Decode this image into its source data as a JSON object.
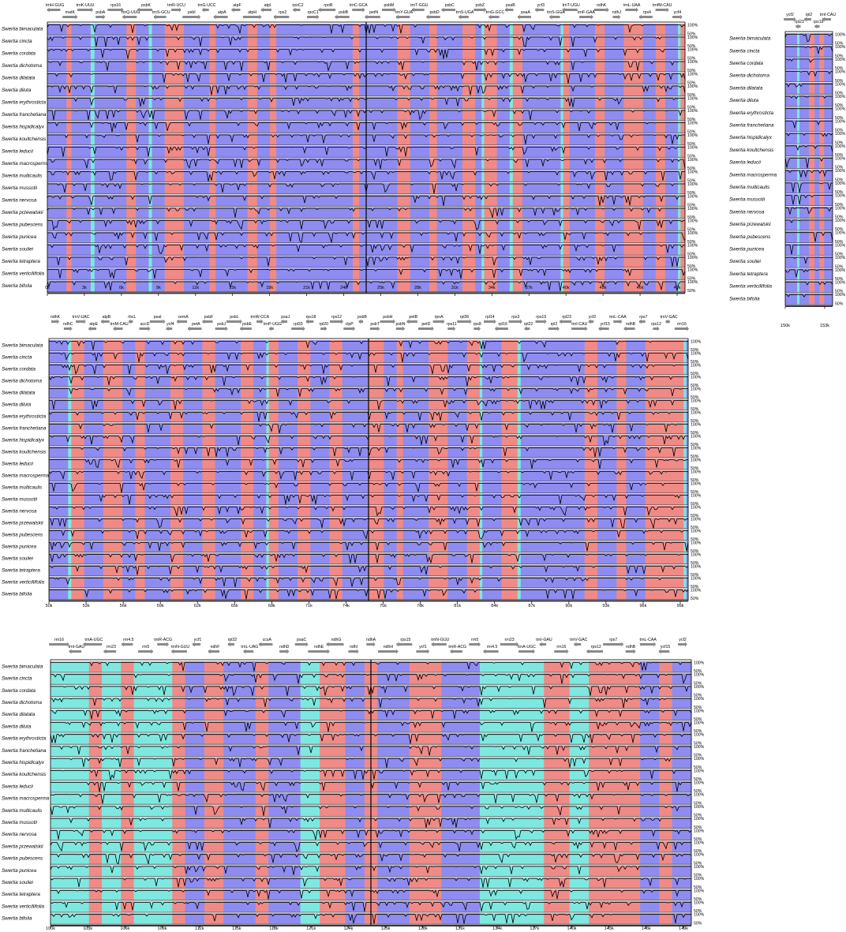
{
  "chart_data": [
    {
      "type": "area",
      "panel": "top-left",
      "x_ticks": [
        "0k",
        "3k",
        "6k",
        "9k",
        "12k",
        "15k",
        "18k",
        "21k",
        "24k",
        "25k",
        "28k",
        "31k",
        "34k",
        "37k",
        "40k",
        "43k",
        "46k",
        "49k"
      ],
      "genes": [
        "trnH-GUG",
        "matK",
        "trnK-UUU",
        "psbA",
        "rps16",
        "trnQ-UUG",
        "psbK",
        "trnS-GCU",
        "trnR-UCU",
        "psbI",
        "trnG-UCC",
        "atpA",
        "atpF",
        "atpH",
        "atpI",
        "rps2",
        "rpoC2",
        "rpoC1",
        "rpoB",
        "psbB",
        "trnC-GCA",
        "petN",
        "psbM",
        "trnY-GUA",
        "trnT-GGU",
        "psbD",
        "psbC",
        "trnS-UGA",
        "psbZ",
        "trnG-GCC",
        "psaB",
        "psaA",
        "ycf3",
        "trnS-GGA",
        "trnT-UGU",
        "trnF-GAA",
        "ndhK",
        "ndhJ",
        "trnL-UAA",
        "rps4",
        "trnfM-CAU",
        "ycf4"
      ]
    },
    {
      "type": "area",
      "panel": "top-right",
      "x_ticks": [
        "150k",
        "153k"
      ],
      "genes": [
        "ycf2",
        "rpl23",
        "rpl2",
        "rps19",
        "trnI-CAU"
      ]
    },
    {
      "type": "area",
      "panel": "middle",
      "x_ticks": [
        "50k",
        "53k",
        "56k",
        "59k",
        "62k",
        "65k",
        "68k",
        "71k",
        "74k",
        "75k",
        "78k",
        "81k",
        "84k",
        "87k",
        "90k",
        "93k",
        "96k",
        "99k"
      ],
      "genes": [
        "ndhK",
        "ndhC",
        "trnV-UAC",
        "atpE",
        "atpB",
        "trnM-CAU",
        "rbcL",
        "accD",
        "psaI",
        "ycf4",
        "cemA",
        "petA",
        "psbF",
        "psbJ",
        "psbL",
        "psbE",
        "trnW-CCA",
        "trnP-UGG",
        "psaJ",
        "rpl33",
        "rps18",
        "rpl20",
        "rps12",
        "clpP",
        "psbB",
        "psbT",
        "psbH",
        "psbN",
        "petB",
        "petD",
        "rpoA",
        "rps11",
        "rpl36",
        "rps8",
        "rpl14",
        "rpl16",
        "rps3",
        "rpl22",
        "rps19",
        "rpl2",
        "rpl23",
        "trnI-CAU",
        "ycf2",
        "ycf15",
        "trnL-CAA",
        "ndhB",
        "rps7",
        "rps12",
        "trnV-GAC",
        "rrn16"
      ]
    },
    {
      "type": "area",
      "panel": "bottom",
      "x_ticks": [
        "100k",
        "103k",
        "106k",
        "109k",
        "112k",
        "115k",
        "118k",
        "121k",
        "124k",
        "125k",
        "128k",
        "131k",
        "134k",
        "137k",
        "140k",
        "143k",
        "146k",
        "149k"
      ],
      "genes": [
        "rrn16",
        "trnI-GAU",
        "trnA-UGC",
        "rrn23",
        "rrn4.5",
        "rrn5",
        "trnR-ACG",
        "trnN-GUU",
        "ycf1",
        "ndhF",
        "rpl32",
        "trnL-UAG",
        "ccsA",
        "ndhD",
        "psaC",
        "ndhE",
        "ndhG",
        "ndhI",
        "ndhA",
        "ndhH",
        "rps15",
        "ycf1",
        "trnN-GUU",
        "trnR-ACG",
        "rrn5",
        "rrn4.5",
        "rrn23",
        "trnA-UGC",
        "trnI-GAU",
        "rrn16",
        "trnV-GAC",
        "rps12",
        "rps7",
        "ndhB",
        "trnL-CAA",
        "ycf15",
        "ycf2"
      ]
    }
  ],
  "species": [
    "Swertia bimaculata",
    "Swertia cincta",
    "Swertia cordata",
    "Swertia dichotoma",
    "Swertia dilatata",
    "Swertia diluta",
    "Swertia erythrosticta",
    "Swertia franchetiana",
    "Swertia hispidicalyx",
    "Swertia koultchensis",
    "Swertia leducii",
    "Swertia macrosperma",
    "Swertia multicaulis",
    "Swertia mussotii",
    "Swertia nervosa",
    "Swertia przewalskii",
    "Swertia pubescens",
    "Swertia punicea",
    "Swertia souliei",
    "Swertia tetraptera",
    "Swertia verticillifolia",
    "Swertia bifolia"
  ],
  "pct_labels": {
    "top": "100%",
    "bottom": "50%"
  },
  "colors": {
    "exon": "#8e8cf0",
    "utr": "#f08a86",
    "rna": "#7ee8e0",
    "cns": "#f08a86",
    "bg": "#ffffff",
    "arrow": "#8a8a8a"
  }
}
